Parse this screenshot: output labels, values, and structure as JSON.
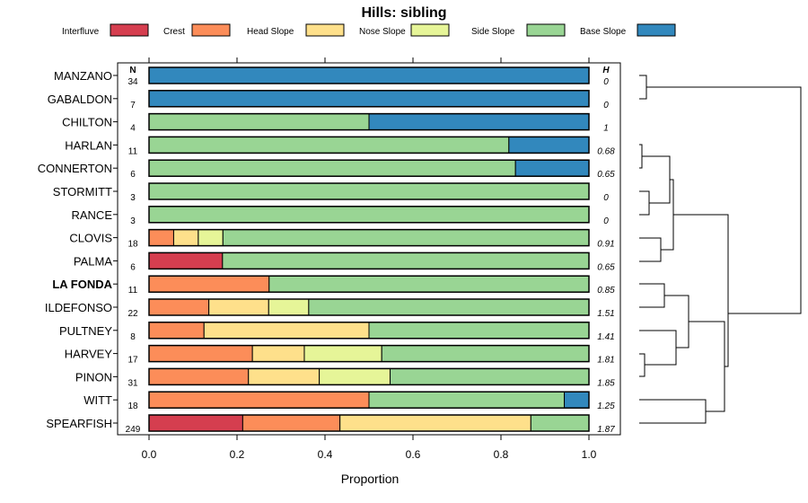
{
  "chart_data": {
    "type": "bar",
    "orientation": "horizontal",
    "stacked": true,
    "title": "Hills: sibling",
    "xlabel": "Proportion",
    "xlim": [
      0,
      1
    ],
    "xticks": [
      "0.0",
      "0.2",
      "0.4",
      "0.6",
      "0.8",
      "1.0"
    ],
    "n_header": "N",
    "h_header": "H",
    "legend": [
      {
        "name": "Interfluve",
        "color": "#D53E4F"
      },
      {
        "name": "Crest",
        "color": "#FC8D59"
      },
      {
        "name": "Head Slope",
        "color": "#FEE08B"
      },
      {
        "name": "Nose Slope",
        "color": "#E6F598"
      },
      {
        "name": "Side Slope",
        "color": "#99D594"
      },
      {
        "name": "Base Slope",
        "color": "#3288BD"
      }
    ],
    "rows": [
      {
        "name": "MANZANO",
        "n": "34",
        "h": "0",
        "bold": false,
        "values": [
          0,
          0,
          0,
          0,
          0,
          1.0
        ]
      },
      {
        "name": "GABALDON",
        "n": "7",
        "h": "0",
        "bold": false,
        "values": [
          0,
          0,
          0,
          0,
          0,
          1.0
        ]
      },
      {
        "name": "CHILTON",
        "n": "4",
        "h": "1",
        "bold": false,
        "values": [
          0,
          0,
          0,
          0,
          0.5,
          0.5
        ]
      },
      {
        "name": "HARLAN",
        "n": "11",
        "h": "0.68",
        "bold": false,
        "values": [
          0,
          0,
          0,
          0,
          0.818,
          0.182
        ]
      },
      {
        "name": "CONNERTON",
        "n": "6",
        "h": "0.65",
        "bold": false,
        "values": [
          0,
          0,
          0,
          0,
          0.833,
          0.167
        ]
      },
      {
        "name": "STORMITT",
        "n": "3",
        "h": "0",
        "bold": false,
        "values": [
          0,
          0,
          0,
          0,
          1.0,
          0
        ]
      },
      {
        "name": "RANCE",
        "n": "3",
        "h": "0",
        "bold": false,
        "values": [
          0,
          0,
          0,
          0,
          1.0,
          0
        ]
      },
      {
        "name": "CLOVIS",
        "n": "18",
        "h": "0.91",
        "bold": false,
        "values": [
          0,
          0.056,
          0.056,
          0.056,
          0.832,
          0
        ]
      },
      {
        "name": "PALMA",
        "n": "6",
        "h": "0.65",
        "bold": false,
        "values": [
          0.167,
          0,
          0,
          0,
          0.833,
          0
        ]
      },
      {
        "name": "LA FONDA",
        "n": "11",
        "h": "0.85",
        "bold": true,
        "values": [
          0,
          0.273,
          0,
          0,
          0.727,
          0
        ]
      },
      {
        "name": "ILDEFONSO",
        "n": "22",
        "h": "1.51",
        "bold": false,
        "values": [
          0,
          0.136,
          0.136,
          0.091,
          0.637,
          0
        ]
      },
      {
        "name": "PULTNEY",
        "n": "8",
        "h": "1.41",
        "bold": false,
        "values": [
          0,
          0.125,
          0.375,
          0,
          0.5,
          0
        ]
      },
      {
        "name": "HARVEY",
        "n": "17",
        "h": "1.81",
        "bold": false,
        "values": [
          0,
          0.235,
          0.118,
          0.176,
          0.471,
          0
        ]
      },
      {
        "name": "PINON",
        "n": "31",
        "h": "1.85",
        "bold": false,
        "values": [
          0,
          0.226,
          0.161,
          0.161,
          0.452,
          0
        ]
      },
      {
        "name": "WITT",
        "n": "18",
        "h": "1.25",
        "bold": false,
        "values": [
          0,
          0.5,
          0,
          0,
          0.444,
          0.056
        ]
      },
      {
        "name": "SPEARFISH",
        "n": "249",
        "h": "1.87",
        "bold": false,
        "values": [
          0.213,
          0.221,
          0.434,
          0,
          0.132,
          0
        ]
      }
    ]
  }
}
